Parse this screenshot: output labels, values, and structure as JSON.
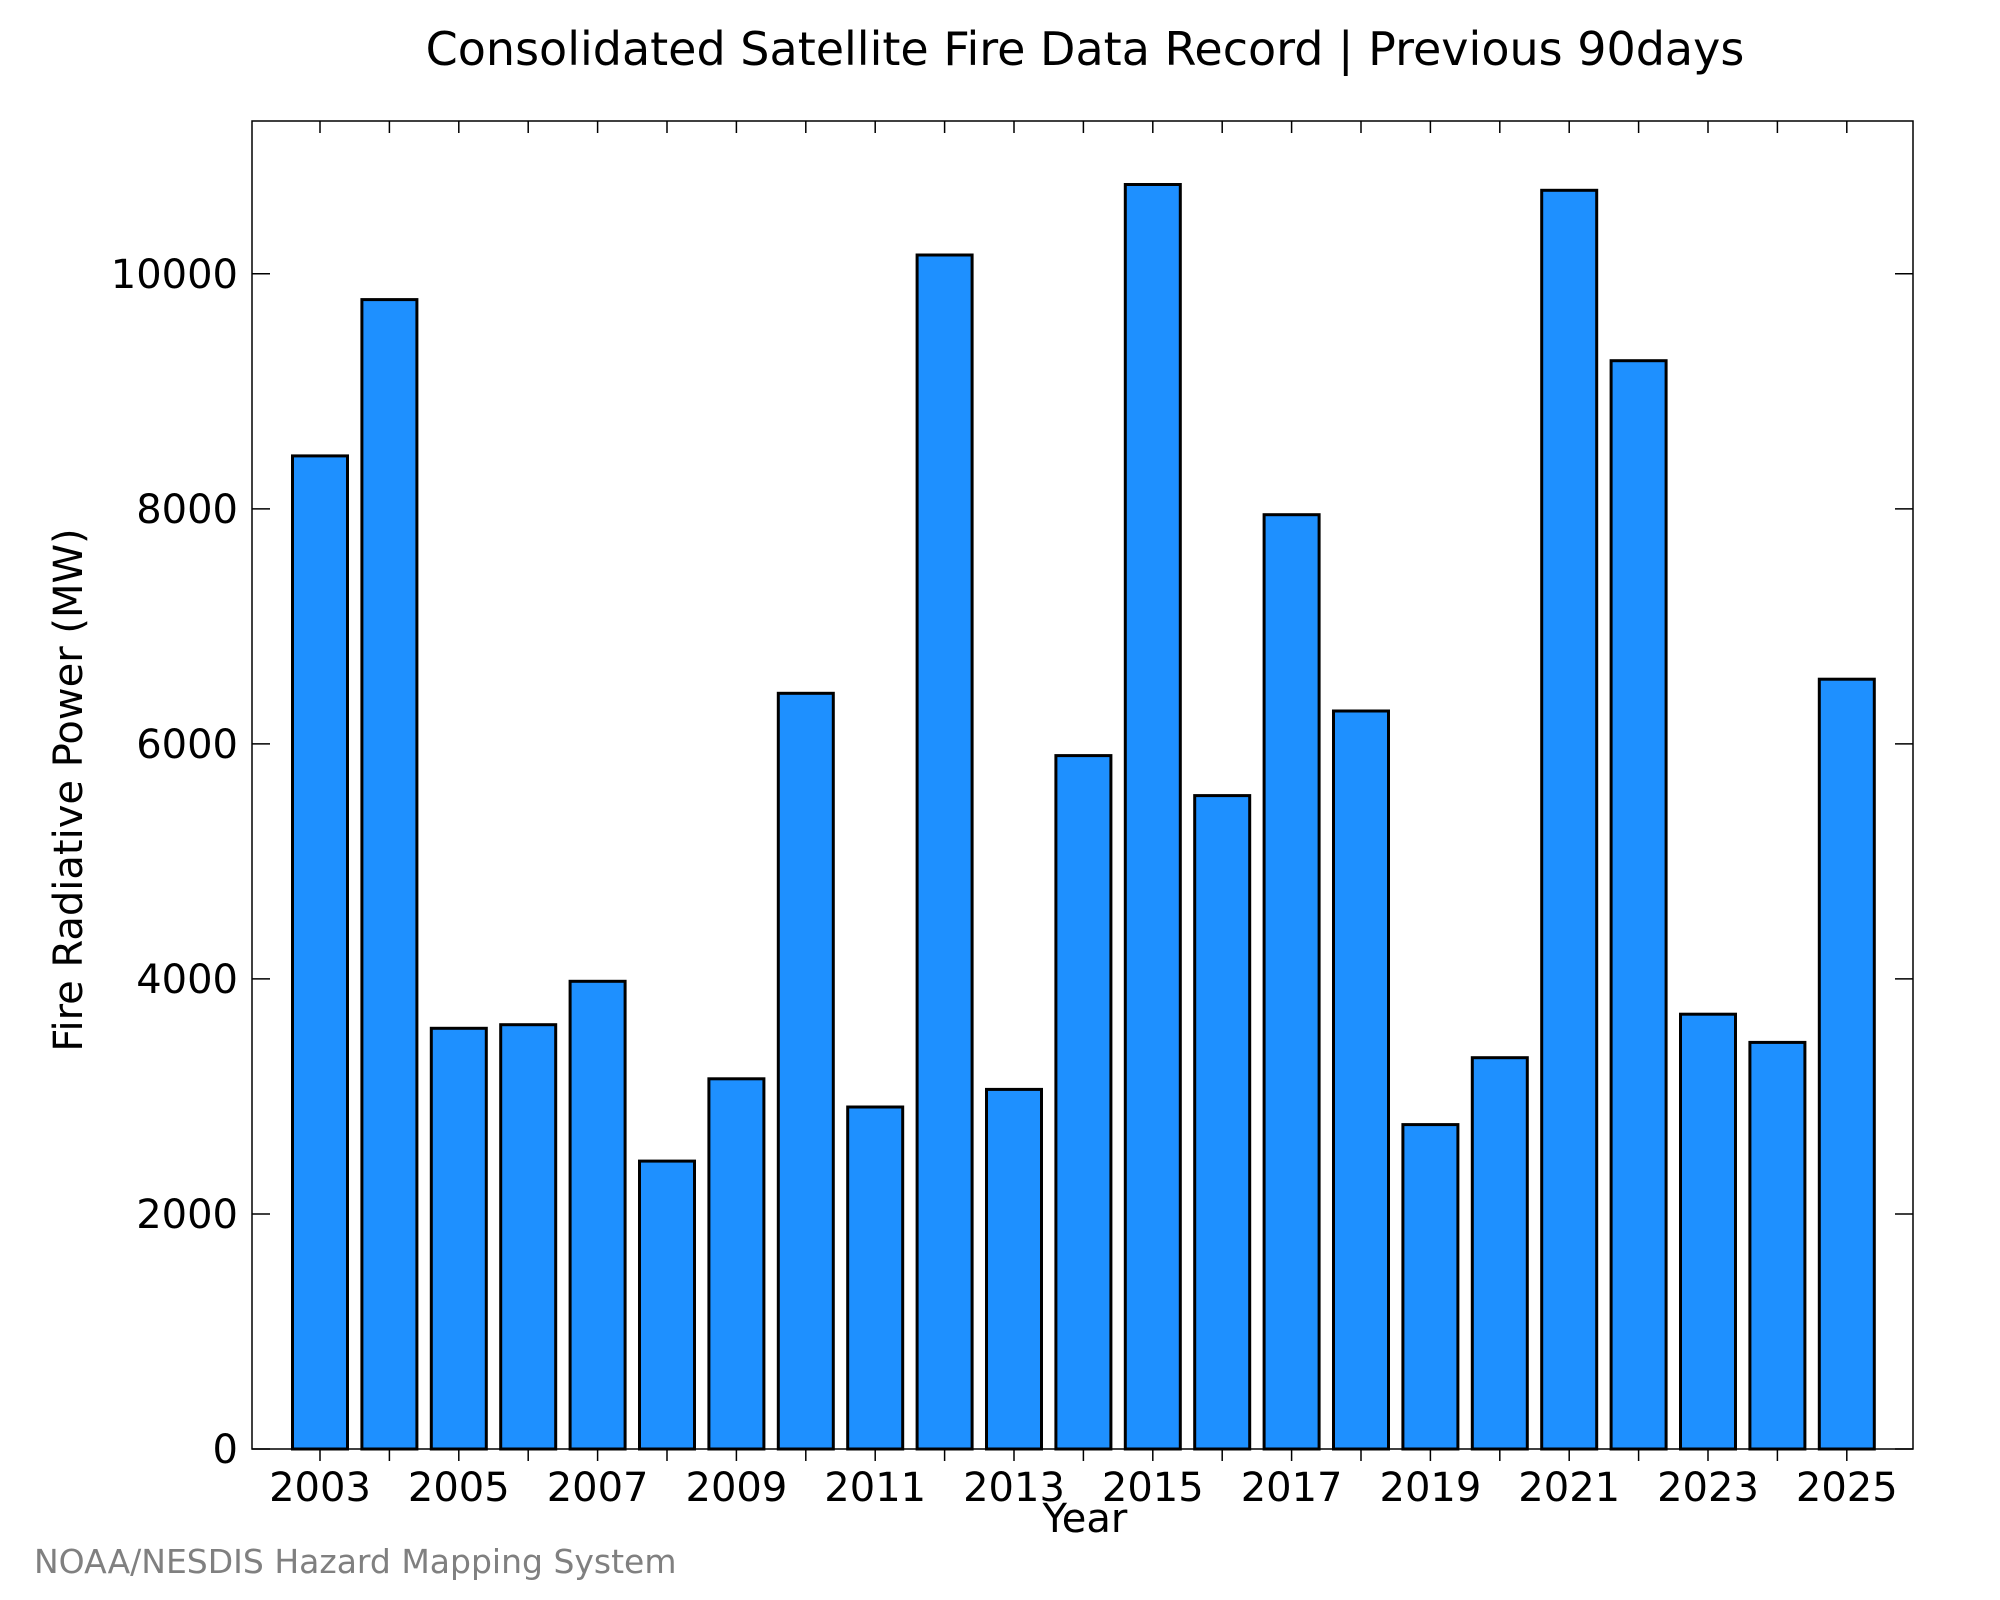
{
  "chart_data": {
    "type": "bar",
    "title": "Consolidated Satellite Fire Data Record | Previous 90days",
    "xlabel": "Year",
    "ylabel": "Fire Radiative Power (MW)",
    "ylim": [
      0,
      11300
    ],
    "yticks": [
      0,
      2000,
      4000,
      6000,
      8000,
      10000
    ],
    "xticks": [
      "2003",
      "2005",
      "2007",
      "2009",
      "2011",
      "2013",
      "2015",
      "2017",
      "2019",
      "2021",
      "2023",
      "2025"
    ],
    "categories": [
      "2003",
      "2004",
      "2005",
      "2006",
      "2007",
      "2008",
      "2009",
      "2010",
      "2011",
      "2012",
      "2013",
      "2014",
      "2015",
      "2016",
      "2017",
      "2018",
      "2019",
      "2020",
      "2021",
      "2022",
      "2023",
      "2024",
      "2025"
    ],
    "values": [
      8450,
      9780,
      3580,
      3610,
      3980,
      2450,
      3150,
      6430,
      2910,
      10160,
      3060,
      5900,
      10760,
      5560,
      7950,
      6280,
      2760,
      3330,
      10710,
      9260,
      3700,
      3460,
      6550
    ],
    "bar_color": "#1e90ff",
    "edge_color": "#000000",
    "grid": false,
    "legend": "none"
  },
  "credit": "NOAA/NESDIS Hazard Mapping System"
}
